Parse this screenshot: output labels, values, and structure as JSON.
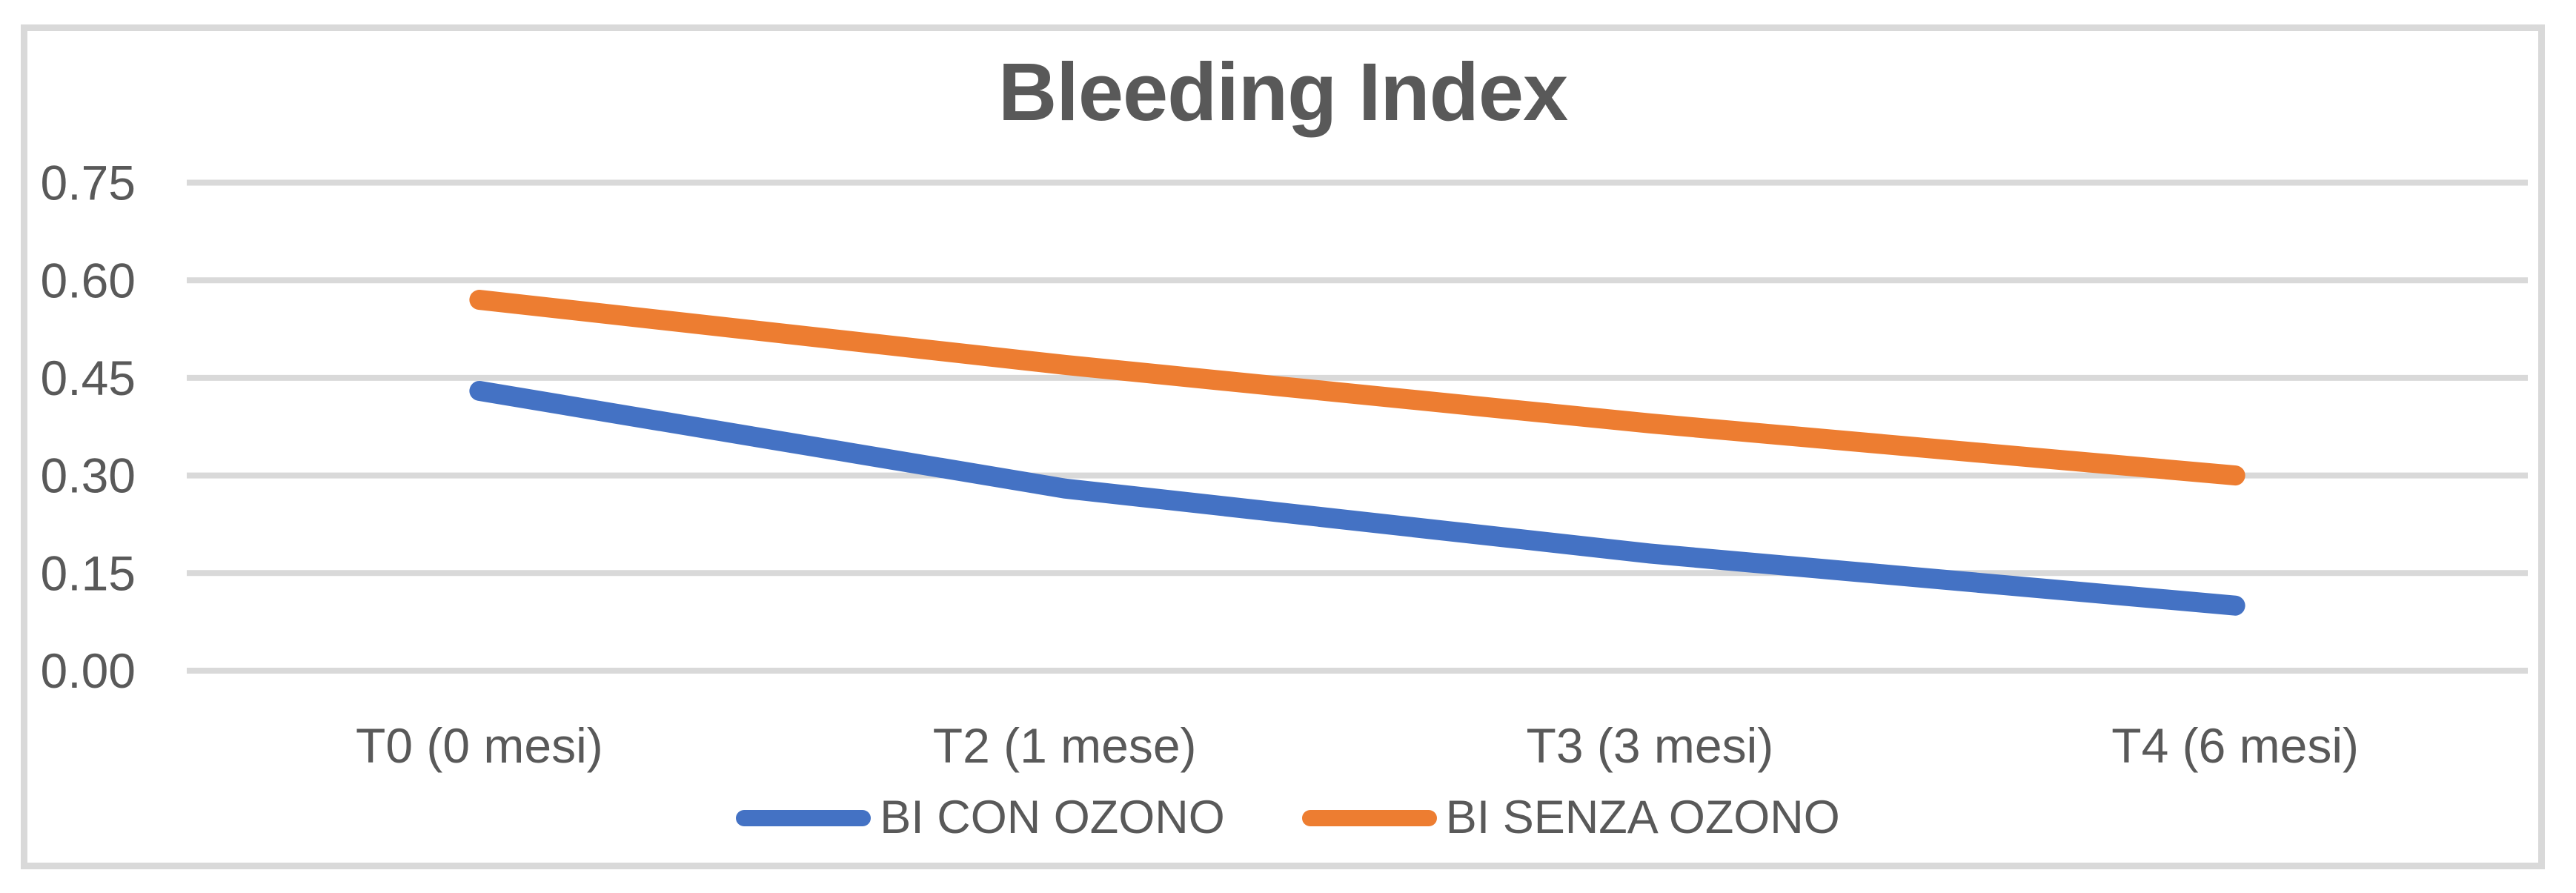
{
  "chart_data": {
    "type": "line",
    "title": "Bleeding Index",
    "categories": [
      "T0 (0 mesi)",
      "T2 (1 mese)",
      "T3 (3 mesi)",
      "T4 (6 mesi)"
    ],
    "series": [
      {
        "name": "BI CON OZONO",
        "color": "#4472C4",
        "values": [
          0.43,
          0.28,
          0.18,
          0.1
        ]
      },
      {
        "name": "BI SENZA OZONO",
        "color": "#ED7D31",
        "values": [
          0.57,
          0.47,
          0.38,
          0.3
        ]
      }
    ],
    "xlabel": "",
    "ylabel": "",
    "ylim": [
      0,
      0.75
    ],
    "yticks": [
      0.0,
      0.15,
      0.3,
      0.45,
      0.6,
      0.75
    ],
    "ytick_labels": [
      "0.00",
      "0.15",
      "0.30",
      "0.45",
      "0.60",
      "0.75"
    ],
    "grid": "horizontal-only",
    "legend_position": "bottom-center"
  },
  "colors": {
    "background": "#FFFFFF",
    "frame_border": "#D9D9D9",
    "gridline": "#D9D9D9",
    "text": "#595959",
    "series_blue": "#4472C4",
    "series_orange": "#ED7D31"
  }
}
